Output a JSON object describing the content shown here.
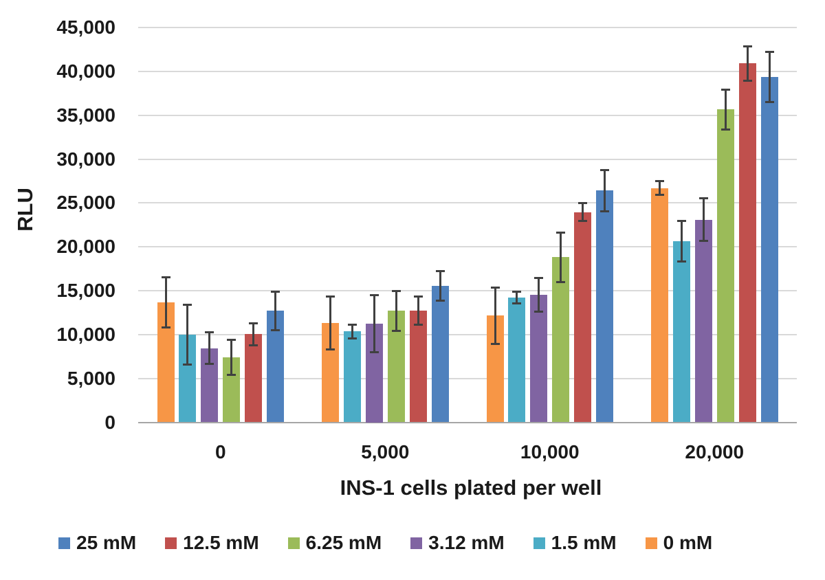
{
  "chart_data": {
    "type": "bar",
    "title": "",
    "xlabel": "INS-1 cells plated per well",
    "ylabel": "RLU",
    "ylim": [
      0,
      45000
    ],
    "ytick_step": 5000,
    "y_tick_labels": [
      "0",
      "5,000",
      "10,000",
      "15,000",
      "20,000",
      "25,000",
      "30,000",
      "35,000",
      "40,000",
      "45,000"
    ],
    "categories": [
      "0",
      "5,000",
      "10,000",
      "20,000"
    ],
    "series": [
      {
        "name": "0 mM",
        "color": "#F79646",
        "values": [
          13700,
          11300,
          12150,
          26700
        ],
        "errors": [
          2900,
          3050,
          3250,
          800
        ]
      },
      {
        "name": "1.5 mM",
        "color": "#4BACC6",
        "values": [
          10000,
          10350,
          14200,
          20650
        ],
        "errors": [
          3450,
          850,
          700,
          2350
        ]
      },
      {
        "name": "3.12 mM",
        "color": "#8064A2",
        "values": [
          8450,
          11250,
          14550,
          23100
        ],
        "errors": [
          1850,
          3300,
          1950,
          2450
        ]
      },
      {
        "name": "6.25 mM",
        "color": "#9BBB59",
        "values": [
          7400,
          12700,
          18800,
          35650
        ],
        "errors": [
          2050,
          2300,
          2850,
          2300
        ]
      },
      {
        "name": "12.5 mM",
        "color": "#C0504D",
        "values": [
          10050,
          12700,
          23950,
          40900
        ],
        "errors": [
          1300,
          1650,
          1050,
          2000
        ]
      },
      {
        "name": "25 mM",
        "color": "#4F81BD",
        "values": [
          12700,
          15550,
          26400,
          39350
        ],
        "errors": [
          2250,
          1750,
          2400,
          2900
        ]
      }
    ],
    "legend": {
      "position": "bottom",
      "items": [
        {
          "label": "25 mM",
          "color": "#4F81BD"
        },
        {
          "label": "12.5 mM",
          "color": "#C0504D"
        },
        {
          "label": "6.25 mM",
          "color": "#9BBB59"
        },
        {
          "label": "3.12 mM",
          "color": "#8064A2"
        },
        {
          "label": "1.5 mM",
          "color": "#4BACC6"
        },
        {
          "label": "0 mM",
          "color": "#F79646"
        }
      ]
    },
    "grid": true,
    "error_bars": true
  },
  "colors": {
    "gridline": "#D9D9D9",
    "axis_line": "#A6A6A6",
    "error_bar": "#404040",
    "text": "#1A1A1A"
  }
}
